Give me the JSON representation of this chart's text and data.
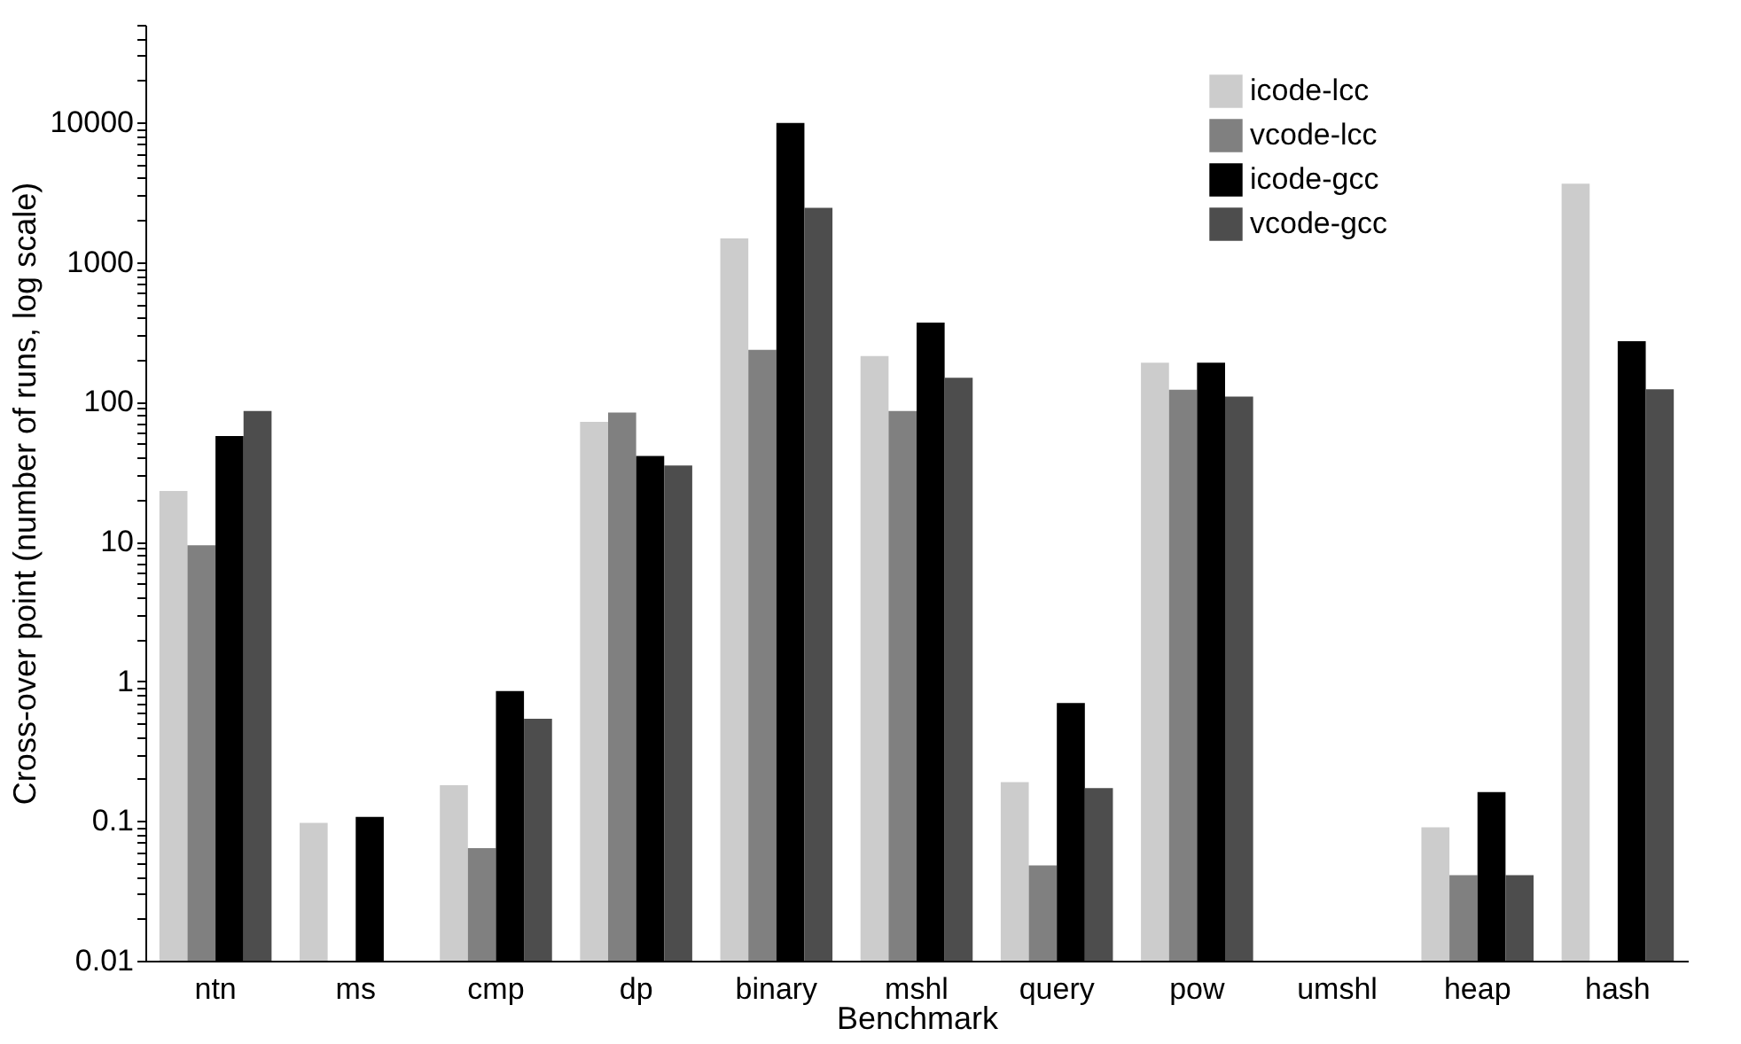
{
  "chart_data": {
    "type": "bar",
    "xlabel": "Benchmark",
    "ylabel": "Cross-over point (number of runs, log scale)",
    "categories": [
      "ntn",
      "ms",
      "cmp",
      "dp",
      "binary",
      "mshl",
      "query",
      "pow",
      "umshl",
      "heap",
      "hash"
    ],
    "series": [
      {
        "name": "icode-lcc",
        "color": "#cccccc",
        "values": [
          23,
          0.097,
          0.18,
          72,
          1480,
          213,
          0.19,
          191,
          null,
          0.09,
          3650
        ]
      },
      {
        "name": "vcode-lcc",
        "color": "#808080",
        "values": [
          9.4,
          null,
          0.064,
          84,
          236,
          86,
          0.048,
          122,
          null,
          0.041,
          null
        ]
      },
      {
        "name": "icode-gcc",
        "color": "#000000",
        "values": [
          57,
          0.107,
          0.85,
          41,
          9900,
          370,
          0.7,
          191,
          null,
          0.161,
          272
        ]
      },
      {
        "name": "vcode-gcc",
        "color": "#4d4d4d",
        "values": [
          86,
          null,
          0.54,
          35,
          2450,
          149,
          0.172,
          109,
          null,
          0.041,
          123
        ]
      }
    ],
    "log": true,
    "ylim": [
      0.01,
      50000
    ],
    "yticks": [
      0.01,
      {
        "value": 0.02,
        "label": null
      },
      {
        "value": 0.03,
        "label": null
      },
      {
        "value": 0.04,
        "label": null
      },
      {
        "value": 0.05,
        "label": null
      },
      {
        "value": 0.06,
        "label": null
      },
      {
        "value": 0.07,
        "label": null
      },
      {
        "value": 0.08,
        "label": null
      },
      {
        "value": 0.09,
        "label": null
      },
      0.1,
      {
        "value": 0.2,
        "label": null
      },
      {
        "value": 0.3,
        "label": null
      },
      {
        "value": 0.4,
        "label": null
      },
      {
        "value": 0.5,
        "label": null
      },
      {
        "value": 0.6,
        "label": null
      },
      {
        "value": 0.7,
        "label": null
      },
      {
        "value": 0.8,
        "label": null
      },
      {
        "value": 0.9,
        "label": null
      },
      1,
      {
        "value": 2,
        "label": null
      },
      {
        "value": 3,
        "label": null
      },
      {
        "value": 4,
        "label": null
      },
      {
        "value": 5,
        "label": null
      },
      {
        "value": 6,
        "label": null
      },
      {
        "value": 7,
        "label": null
      },
      {
        "value": 8,
        "label": null
      },
      {
        "value": 9,
        "label": null
      },
      10,
      {
        "value": 20,
        "label": null
      },
      {
        "value": 30,
        "label": null
      },
      {
        "value": 40,
        "label": null
      },
      {
        "value": 50,
        "label": null
      },
      {
        "value": 60,
        "label": null
      },
      {
        "value": 70,
        "label": null
      },
      {
        "value": 80,
        "label": null
      },
      {
        "value": 90,
        "label": null
      },
      100,
      {
        "value": 200,
        "label": null
      },
      {
        "value": 300,
        "label": null
      },
      {
        "value": 400,
        "label": null
      },
      {
        "value": 500,
        "label": null
      },
      {
        "value": 600,
        "label": null
      },
      {
        "value": 700,
        "label": null
      },
      {
        "value": 800,
        "label": null
      },
      {
        "value": 900,
        "label": null
      },
      1000,
      {
        "value": 2000,
        "label": null
      },
      {
        "value": 3000,
        "label": null
      },
      {
        "value": 4000,
        "label": null
      },
      {
        "value": 5000,
        "label": null
      },
      {
        "value": 6000,
        "label": null
      },
      {
        "value": 7000,
        "label": null
      },
      {
        "value": 8000,
        "label": null
      },
      {
        "value": 9000,
        "label": null
      },
      10000,
      {
        "value": 20000,
        "label": null
      },
      {
        "value": 30000,
        "label": null
      },
      {
        "value": 40000,
        "label": null
      },
      {
        "value": 50000,
        "label": null
      }
    ],
    "grid": false,
    "legend": "top right"
  }
}
